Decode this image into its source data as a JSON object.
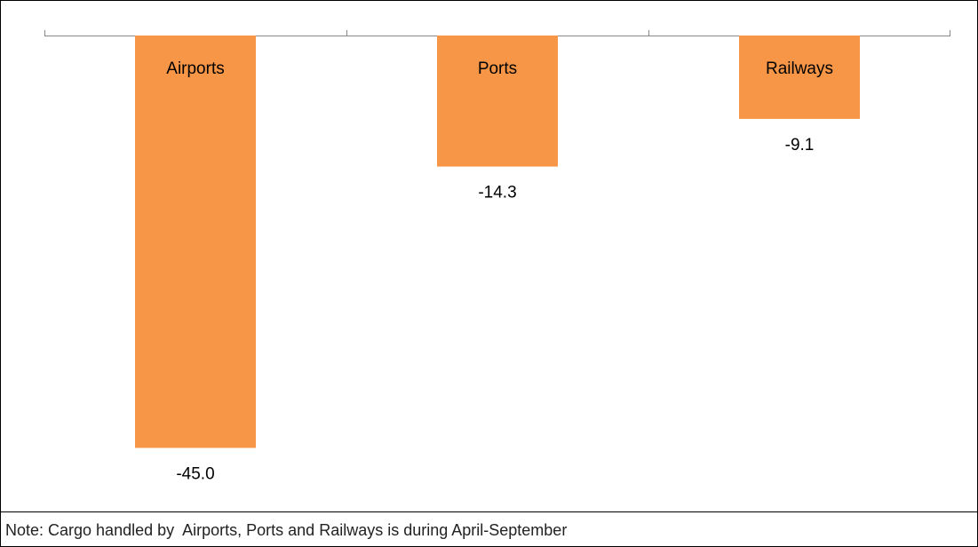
{
  "chart_data": {
    "type": "bar",
    "categories": [
      "Airports",
      "Ports",
      "Railways"
    ],
    "values": [
      -45.0,
      -14.3,
      -9.1
    ],
    "value_labels": [
      "-45.0",
      "-14.3",
      "-9.1"
    ],
    "color": "#f79646",
    "ylim": [
      -50,
      0
    ],
    "note": "Note: Cargo handled by  Airports, Ports and Railways is during April-September"
  }
}
